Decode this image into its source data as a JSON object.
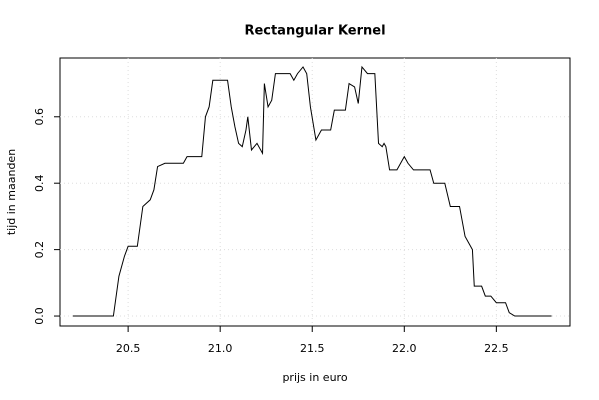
{
  "chart_data": {
    "type": "line",
    "title": "Rectangular Kernel",
    "x_label": "prijs in euro",
    "y_label": "tijd in maanden",
    "x": [
      20.2,
      20.42,
      20.45,
      20.48,
      20.5,
      20.55,
      20.58,
      20.62,
      20.64,
      20.66,
      20.7,
      20.8,
      20.82,
      20.9,
      20.92,
      20.94,
      20.96,
      21.04,
      21.06,
      21.08,
      21.1,
      21.12,
      21.14,
      21.15,
      21.17,
      21.2,
      21.23,
      21.24,
      21.26,
      21.28,
      21.3,
      21.38,
      21.4,
      21.42,
      21.45,
      21.47,
      21.49,
      21.52,
      21.55,
      21.6,
      21.62,
      21.68,
      21.7,
      21.73,
      21.75,
      21.77,
      21.8,
      21.84,
      21.86,
      21.88,
      21.89,
      21.9,
      21.92,
      21.96,
      21.98,
      22.0,
      22.02,
      22.05,
      22.14,
      22.16,
      22.22,
      22.25,
      22.3,
      22.33,
      22.35,
      22.37,
      22.38,
      22.42,
      22.44,
      22.47,
      22.5,
      22.55,
      22.57,
      22.6,
      22.8
    ],
    "values": [
      0,
      0,
      0.12,
      0.18,
      0.21,
      0.21,
      0.33,
      0.35,
      0.38,
      0.45,
      0.46,
      0.46,
      0.48,
      0.48,
      0.6,
      0.63,
      0.71,
      0.71,
      0.63,
      0.57,
      0.52,
      0.51,
      0.56,
      0.6,
      0.5,
      0.52,
      0.49,
      0.7,
      0.63,
      0.65,
      0.73,
      0.73,
      0.71,
      0.73,
      0.75,
      0.73,
      0.63,
      0.53,
      0.56,
      0.56,
      0.62,
      0.62,
      0.7,
      0.69,
      0.64,
      0.75,
      0.73,
      0.73,
      0.52,
      0.51,
      0.52,
      0.51,
      0.44,
      0.44,
      0.46,
      0.48,
      0.46,
      0.44,
      0.44,
      0.4,
      0.4,
      0.33,
      0.33,
      0.24,
      0.22,
      0.2,
      0.09,
      0.09,
      0.06,
      0.06,
      0.04,
      0.04,
      0.01,
      0,
      0
    ],
    "color": "#000000",
    "xlim": [
      20.13,
      22.9
    ],
    "xticks": [
      20.5,
      {
        "value": 21,
        "label": "21.0"
      },
      21.5,
      {
        "value": 22,
        "label": "22.0"
      },
      22.5
    ],
    "ylim": [
      -0.03,
      0.777
    ],
    "yticks": [
      {
        "value": 0,
        "label": "0.0"
      },
      0.2,
      0.4,
      0.6
    ],
    "grid": true
  }
}
